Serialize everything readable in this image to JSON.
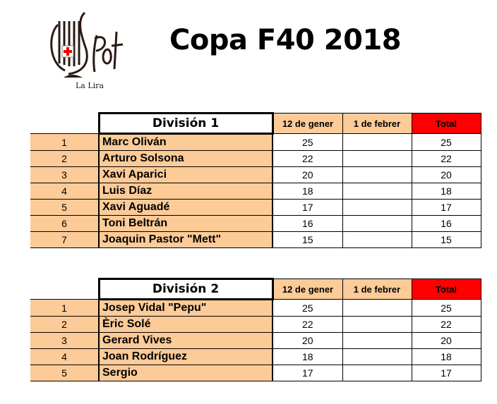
{
  "logo": {
    "text": "Pot",
    "subtitle": "La Lira"
  },
  "title": "Copa F40 2018",
  "columns": [
    "12 de gener",
    "1 de febrer",
    "Total"
  ],
  "colors": {
    "peach": "#FCCB98",
    "total_header": "#FF0000"
  },
  "divisions": [
    {
      "name": "División 1",
      "rows": [
        {
          "rank": "1",
          "name": "Marc Oliván",
          "d1": "25",
          "d2": "",
          "total": "25"
        },
        {
          "rank": "2",
          "name": "Arturo Solsona",
          "d1": "22",
          "d2": "",
          "total": "22"
        },
        {
          "rank": "3",
          "name": "Xavi Aparici",
          "d1": "20",
          "d2": "",
          "total": "20"
        },
        {
          "rank": "4",
          "name": "Luis Díaz",
          "d1": "18",
          "d2": "",
          "total": "18"
        },
        {
          "rank": "5",
          "name": "Xavi Aguadé",
          "d1": "17",
          "d2": "",
          "total": "17"
        },
        {
          "rank": "6",
          "name": "Toni Beltrán",
          "d1": "16",
          "d2": "",
          "total": "16"
        },
        {
          "rank": "7",
          "name": "Joaquin Pastor \"Mett\"",
          "d1": "15",
          "d2": "",
          "total": "15"
        }
      ]
    },
    {
      "name": "División 2",
      "rows": [
        {
          "rank": "1",
          "name": "Josep Vidal \"Pepu\"",
          "d1": "25",
          "d2": "",
          "total": "25"
        },
        {
          "rank": "2",
          "name": "Èric Solé",
          "d1": "22",
          "d2": "",
          "total": "22"
        },
        {
          "rank": "3",
          "name": "Gerard Vives",
          "d1": "20",
          "d2": "",
          "total": "20"
        },
        {
          "rank": "4",
          "name": "Joan Rodríguez",
          "d1": "18",
          "d2": "",
          "total": "18"
        },
        {
          "rank": "5",
          "name": "Sergio",
          "d1": "17",
          "d2": "",
          "total": "17"
        }
      ]
    }
  ]
}
